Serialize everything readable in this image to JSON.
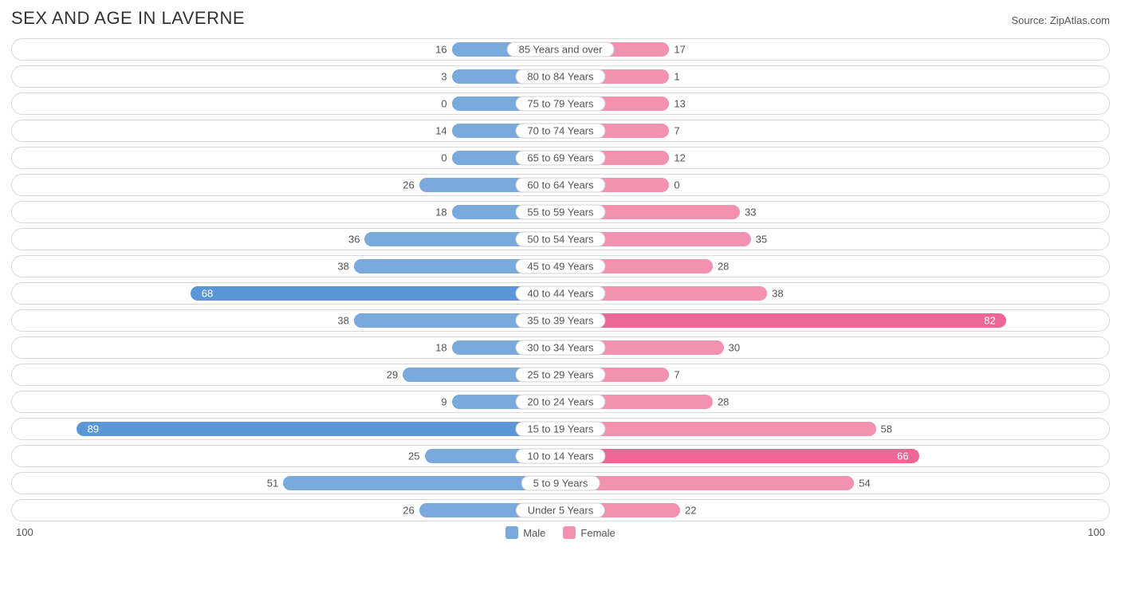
{
  "header": {
    "title": "SEX AND AGE IN LAVERNE",
    "source": "Source: ZipAtlas.com"
  },
  "chart": {
    "type": "population-pyramid",
    "axis_max": 100,
    "axis_left_label": "100",
    "axis_right_label": "100",
    "background_color": "#ffffff",
    "row_border_color": "#d9d9d9",
    "text_color": "#555555",
    "inside_threshold": 60,
    "series": {
      "male": {
        "label": "Male",
        "fill": "#7aa9dd",
        "fill_strong": "#5b96d6"
      },
      "female": {
        "label": "Female",
        "fill": "#f391b1",
        "fill_strong": "#ee6796"
      }
    },
    "rows": [
      {
        "label": "85 Years and over",
        "male": 16,
        "female": 17
      },
      {
        "label": "80 to 84 Years",
        "male": 3,
        "female": 1
      },
      {
        "label": "75 to 79 Years",
        "male": 0,
        "female": 13
      },
      {
        "label": "70 to 74 Years",
        "male": 14,
        "female": 7
      },
      {
        "label": "65 to 69 Years",
        "male": 0,
        "female": 12
      },
      {
        "label": "60 to 64 Years",
        "male": 26,
        "female": 0
      },
      {
        "label": "55 to 59 Years",
        "male": 18,
        "female": 33
      },
      {
        "label": "50 to 54 Years",
        "male": 36,
        "female": 35
      },
      {
        "label": "45 to 49 Years",
        "male": 38,
        "female": 28
      },
      {
        "label": "40 to 44 Years",
        "male": 68,
        "female": 38
      },
      {
        "label": "35 to 39 Years",
        "male": 38,
        "female": 82
      },
      {
        "label": "30 to 34 Years",
        "male": 18,
        "female": 30
      },
      {
        "label": "25 to 29 Years",
        "male": 29,
        "female": 7
      },
      {
        "label": "20 to 24 Years",
        "male": 9,
        "female": 28
      },
      {
        "label": "15 to 19 Years",
        "male": 89,
        "female": 58
      },
      {
        "label": "10 to 14 Years",
        "male": 25,
        "female": 66
      },
      {
        "label": "5 to 9 Years",
        "male": 51,
        "female": 54
      },
      {
        "label": "Under 5 Years",
        "male": 26,
        "female": 22
      }
    ]
  }
}
